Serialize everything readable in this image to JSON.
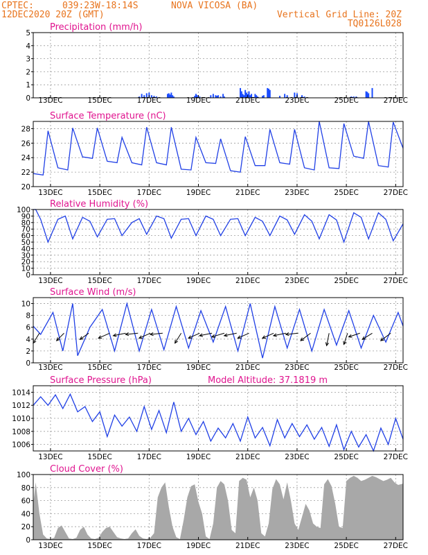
{
  "header": {
    "source": "CPTEC:",
    "coords": "039:23W-18:14S",
    "station": "NOVA VICOSA (BA)",
    "run": "12DEC2020 20Z (GMT)",
    "grid_note": "Vertical Grid Line: 20Z",
    "code": "TQ0126L028"
  },
  "x_labels": [
    "13DEC",
    "15DEC",
    "17DEC",
    "19DEC",
    "21DEC",
    "23DEC",
    "25DEC",
    "27DEC"
  ],
  "colors": {
    "line": "#1f3fe6",
    "bar": "#1a4cff",
    "cloud": "#a8a8a8",
    "header": "#e8731c",
    "title": "#e0148f"
  },
  "chart_data": [
    {
      "id": "precip",
      "type": "bar",
      "title": "Precipitation (mm/h)",
      "ylim": [
        0,
        5
      ],
      "yticks": [
        0,
        1,
        2,
        3,
        4,
        5
      ],
      "x_days": [
        4.3,
        4.4,
        4.5,
        4.6,
        4.7,
        4.8,
        4.9,
        5.0,
        5.45,
        5.5,
        5.55,
        5.6,
        5.65,
        5.7,
        6.55,
        6.6,
        6.65,
        6.75,
        7.2,
        7.3,
        7.4,
        7.45,
        7.5,
        7.6,
        7.7,
        7.75,
        8.4,
        8.45,
        8.5,
        8.55,
        8.6,
        8.65,
        8.7,
        8.75,
        8.8,
        8.85,
        9.0,
        9.05,
        9.1,
        9.3,
        9.35,
        9.5,
        9.55,
        9.6,
        10.0,
        10.2,
        10.3,
        10.6,
        10.7,
        10.9,
        11.0,
        12.9,
        13.0,
        13.1,
        13.5,
        13.55,
        13.6
      ],
      "values": [
        0.1,
        0.3,
        0.2,
        0.35,
        0.4,
        0.2,
        0.15,
        0.1,
        0.3,
        0.35,
        0.25,
        0.4,
        0.2,
        0.1,
        0.15,
        0.3,
        0.2,
        0.1,
        0.2,
        0.3,
        0.2,
        0.15,
        0.2,
        0.1,
        0.3,
        0.1,
        0.75,
        0.5,
        0.3,
        0.2,
        0.6,
        0.4,
        0.3,
        0.5,
        0.2,
        0.3,
        0.3,
        0.2,
        0.1,
        0.15,
        0.2,
        0.75,
        0.7,
        0.6,
        0.15,
        0.3,
        0.2,
        0.4,
        0.35,
        0.2,
        0.1,
        0.1,
        0.1,
        0.1,
        0.5,
        0.45,
        0.35
      ],
      "values2": {
        "x_days": [
          13.75
        ],
        "values": [
          0.75
        ]
      }
    },
    {
      "id": "temp",
      "type": "line",
      "title": "Surface Temperature (nC)",
      "ylim": [
        20,
        29
      ],
      "yticks": [
        20,
        22,
        24,
        26,
        28
      ],
      "x_days": [
        0.0,
        0.4,
        0.6,
        1.0,
        1.4,
        1.6,
        2.0,
        2.4,
        2.6,
        3.0,
        3.4,
        3.6,
        4.0,
        4.4,
        4.6,
        5.0,
        5.4,
        5.6,
        6.0,
        6.4,
        6.6,
        7.0,
        7.4,
        7.6,
        8.0,
        8.4,
        8.6,
        9.0,
        9.4,
        9.6,
        10.0,
        10.4,
        10.6,
        11.0,
        11.4,
        11.6,
        12.0,
        12.4,
        12.6,
        13.0,
        13.4,
        13.6,
        14.0,
        14.4,
        14.6,
        15.0
      ],
      "values": [
        21.8,
        21.6,
        27.7,
        22.6,
        22.3,
        28.1,
        24.1,
        23.9,
        28.1,
        23.5,
        23.3,
        26.8,
        23.3,
        23.0,
        28.2,
        23.3,
        23.0,
        28.2,
        22.4,
        22.3,
        26.8,
        23.3,
        23.2,
        26.6,
        22.2,
        22.0,
        26.9,
        22.9,
        22.9,
        27.9,
        23.3,
        23.1,
        27.9,
        22.6,
        22.3,
        29.0,
        22.6,
        22.5,
        28.7,
        24.2,
        23.9,
        29.0,
        22.9,
        22.7,
        28.9,
        25.3
      ]
    },
    {
      "id": "rh",
      "type": "line",
      "title": "Relative Humidity (%)",
      "ylim": [
        0,
        100
      ],
      "yticks": [
        0,
        10,
        20,
        30,
        40,
        50,
        60,
        70,
        80,
        90,
        100
      ],
      "x_days": [
        0.0,
        0.1,
        0.3,
        0.6,
        1.0,
        1.3,
        1.6,
        2.0,
        2.3,
        2.6,
        3.0,
        3.3,
        3.6,
        4.0,
        4.3,
        4.6,
        5.0,
        5.3,
        5.6,
        6.0,
        6.3,
        6.6,
        7.0,
        7.3,
        7.6,
        8.0,
        8.3,
        8.6,
        9.0,
        9.3,
        9.6,
        10.0,
        10.3,
        10.6,
        11.0,
        11.3,
        11.6,
        12.0,
        12.3,
        12.6,
        13.0,
        13.3,
        13.6,
        14.0,
        14.3,
        14.6,
        15.0
      ],
      "values": [
        100,
        100,
        85,
        50,
        85,
        90,
        55,
        88,
        82,
        58,
        85,
        86,
        60,
        80,
        86,
        62,
        90,
        86,
        56,
        85,
        86,
        60,
        90,
        85,
        60,
        85,
        86,
        60,
        88,
        82,
        60,
        90,
        84,
        62,
        92,
        82,
        55,
        92,
        84,
        50,
        95,
        88,
        55,
        95,
        85,
        52,
        78
      ]
    },
    {
      "id": "wind",
      "type": "line",
      "title": "Surface Wind (m/s)",
      "ylim": [
        0,
        11
      ],
      "yticks": [
        0,
        2,
        4,
        6,
        8,
        10
      ],
      "x_days": [
        0.0,
        0.3,
        0.8,
        1.2,
        1.6,
        1.8,
        2.3,
        2.8,
        3.3,
        3.8,
        4.3,
        4.8,
        5.3,
        5.8,
        6.3,
        6.8,
        7.3,
        7.8,
        8.3,
        8.8,
        9.3,
        9.8,
        10.3,
        10.8,
        11.3,
        11.8,
        12.3,
        12.8,
        13.3,
        13.8,
        14.3,
        14.8,
        15.0
      ],
      "values": [
        6.2,
        4.8,
        8.5,
        2.0,
        10.0,
        1.2,
        6.0,
        9.0,
        2.0,
        10.0,
        2.0,
        9.0,
        2.2,
        9.5,
        2.5,
        8.8,
        3.5,
        9.5,
        2.0,
        10.0,
        0.8,
        9.5,
        2.5,
        9.0,
        2.0,
        9.0,
        3.0,
        8.8,
        2.5,
        8.0,
        3.5,
        8.5,
        6.2
      ],
      "arrows": {
        "x_days": [
          0.25,
          1.25,
          2.25,
          3.1,
          3.75,
          4.25,
          4.75,
          5.25,
          6.0,
          6.75,
          7.25,
          7.75,
          8.25,
          8.75,
          9.75,
          10.25,
          10.75,
          11.25,
          12.0,
          12.75,
          13.25,
          13.75,
          14.5
        ],
        "u": [
          -0.5,
          -0.6,
          -0.7,
          -0.9,
          -1.0,
          -1.0,
          -0.9,
          -1.0,
          -0.5,
          -0.9,
          -1.0,
          -1.0,
          -1.0,
          -0.9,
          -0.9,
          -1.0,
          -1.0,
          -0.8,
          -0.2,
          -0.3,
          -0.9,
          -0.8,
          -0.8
        ],
        "v": [
          -0.8,
          -0.6,
          -0.5,
          -0.4,
          -0.2,
          -0.1,
          -0.4,
          -0.1,
          -0.8,
          -0.4,
          -0.2,
          -0.3,
          -0.2,
          -0.4,
          -0.4,
          -0.2,
          -0.1,
          -0.6,
          -1.0,
          -0.9,
          -0.3,
          -0.5,
          -0.6
        ]
      }
    },
    {
      "id": "press",
      "type": "line",
      "title": "Surface Pressure (hPa)",
      "subtitle": "Model Altitude: 37.1819 m",
      "ylim": [
        1005,
        1015
      ],
      "yticks": [
        1006,
        1008,
        1010,
        1012,
        1014
      ],
      "x_days": [
        0.0,
        0.3,
        0.6,
        0.9,
        1.2,
        1.5,
        1.8,
        2.1,
        2.4,
        2.7,
        3.0,
        3.3,
        3.6,
        3.9,
        4.2,
        4.5,
        4.8,
        5.1,
        5.4,
        5.7,
        6.0,
        6.3,
        6.6,
        6.9,
        7.2,
        7.5,
        7.8,
        8.1,
        8.4,
        8.7,
        9.0,
        9.3,
        9.6,
        9.9,
        10.2,
        10.5,
        10.8,
        11.1,
        11.4,
        11.7,
        12.0,
        12.3,
        12.6,
        12.9,
        13.2,
        13.5,
        13.8,
        14.1,
        14.4,
        14.7,
        15.0
      ],
      "values": [
        1012.0,
        1013.3,
        1012.0,
        1013.6,
        1011.5,
        1013.7,
        1011.0,
        1011.8,
        1009.5,
        1011.0,
        1007.2,
        1010.5,
        1008.8,
        1010.2,
        1008.0,
        1011.8,
        1008.3,
        1011.2,
        1007.8,
        1012.5,
        1008.0,
        1010.0,
        1007.5,
        1009.5,
        1006.5,
        1008.5,
        1007.0,
        1009.2,
        1006.5,
        1010.2,
        1007.0,
        1008.6,
        1005.8,
        1009.8,
        1007.0,
        1009.2,
        1007.2,
        1009.0,
        1006.8,
        1008.6,
        1005.7,
        1009.0,
        1005.2,
        1008.0,
        1005.6,
        1007.5,
        1005.0,
        1008.5,
        1006.0,
        1010.0,
        1006.8
      ]
    },
    {
      "id": "cloud",
      "type": "area",
      "title": "Cloud Cover (%)",
      "ylim": [
        0,
        100
      ],
      "yticks": [
        0,
        20,
        40,
        60,
        80,
        100
      ],
      "x_days": [
        0.0,
        0.1,
        0.25,
        0.4,
        0.55,
        0.7,
        0.85,
        1.0,
        1.15,
        1.3,
        1.45,
        1.6,
        1.75,
        1.9,
        2.05,
        2.2,
        2.35,
        2.5,
        2.65,
        2.8,
        2.95,
        3.1,
        3.25,
        3.4,
        3.55,
        3.7,
        3.85,
        4.0,
        4.15,
        4.3,
        4.45,
        4.6,
        4.75,
        4.9,
        5.05,
        5.2,
        5.35,
        5.5,
        5.65,
        5.8,
        5.95,
        6.1,
        6.25,
        6.4,
        6.55,
        6.7,
        6.85,
        7.0,
        7.15,
        7.3,
        7.45,
        7.6,
        7.75,
        7.9,
        8.05,
        8.2,
        8.35,
        8.5,
        8.65,
        8.8,
        8.95,
        9.1,
        9.25,
        9.4,
        9.55,
        9.7,
        9.85,
        10.0,
        10.15,
        10.3,
        10.45,
        10.6,
        10.75,
        10.9,
        11.05,
        11.2,
        11.35,
        11.5,
        11.65,
        11.8,
        11.95,
        12.1,
        12.25,
        12.4,
        12.55,
        12.7,
        12.85,
        13.0,
        13.15,
        13.3,
        13.45,
        13.6,
        13.75,
        13.9,
        14.05,
        14.2,
        14.35,
        14.5,
        14.65,
        14.8,
        15.0
      ],
      "values": [
        55,
        88,
        40,
        8,
        2,
        1,
        3,
        18,
        22,
        12,
        2,
        1,
        3,
        15,
        20,
        8,
        2,
        1,
        3,
        12,
        18,
        20,
        12,
        4,
        2,
        1,
        2,
        10,
        16,
        6,
        2,
        1,
        3,
        10,
        65,
        80,
        88,
        50,
        20,
        4,
        1,
        30,
        65,
        82,
        85,
        58,
        40,
        5,
        1,
        25,
        80,
        90,
        85,
        60,
        15,
        10,
        90,
        95,
        92,
        65,
        80,
        60,
        10,
        5,
        25,
        78,
        93,
        85,
        62,
        88,
        60,
        25,
        15,
        35,
        55,
        45,
        25,
        20,
        18,
        85,
        93,
        82,
        55,
        20,
        18,
        90,
        95,
        98,
        95,
        90,
        92,
        95,
        98,
        96,
        93,
        90,
        92,
        95,
        88,
        84,
        86
      ]
    }
  ]
}
